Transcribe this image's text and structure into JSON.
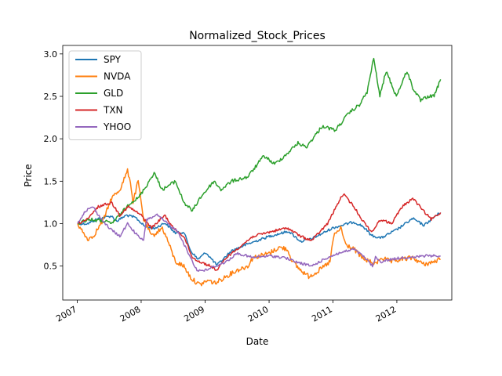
{
  "chart_data": {
    "type": "line",
    "title": "Normalized_Stock_Prices",
    "xlabel": "Date",
    "ylabel": "Price",
    "x_ticks": [
      "2007",
      "2008",
      "2009",
      "2010",
      "2011",
      "2012"
    ],
    "y_ticks": [
      "0.5",
      "1.0",
      "1.5",
      "2.0",
      "2.5",
      "3.0"
    ],
    "xlim": [
      "2006-10-10",
      "2012-11-10"
    ],
    "ylim": [
      0.1,
      3.1
    ],
    "grid": false,
    "legend_position": "top-left",
    "series": [
      {
        "name": "SPY",
        "color": "#1f77b4",
        "points": [
          [
            "2007-01-03",
            1.0
          ],
          [
            "2007-03-01",
            1.0
          ],
          [
            "2007-05-01",
            1.06
          ],
          [
            "2007-07-15",
            1.09
          ],
          [
            "2007-08-15",
            1.03
          ],
          [
            "2007-10-09",
            1.1
          ],
          [
            "2007-12-01",
            1.07
          ],
          [
            "2008-01-20",
            0.97
          ],
          [
            "2008-03-15",
            0.94
          ],
          [
            "2008-05-15",
            1.01
          ],
          [
            "2008-07-15",
            0.89
          ],
          [
            "2008-09-01",
            0.9
          ],
          [
            "2008-10-10",
            0.68
          ],
          [
            "2008-11-20",
            0.58
          ],
          [
            "2009-01-05",
            0.66
          ],
          [
            "2009-03-09",
            0.51
          ],
          [
            "2009-06-01",
            0.68
          ],
          [
            "2009-09-01",
            0.76
          ],
          [
            "2010-01-01",
            0.85
          ],
          [
            "2010-04-23",
            0.91
          ],
          [
            "2010-07-01",
            0.79
          ],
          [
            "2010-09-01",
            0.82
          ],
          [
            "2011-01-01",
            0.95
          ],
          [
            "2011-04-29",
            1.02
          ],
          [
            "2011-06-20",
            0.97
          ],
          [
            "2011-08-10",
            0.86
          ],
          [
            "2011-10-03",
            0.83
          ],
          [
            "2012-01-01",
            0.93
          ],
          [
            "2012-04-01",
            1.06
          ],
          [
            "2012-06-04",
            0.98
          ],
          [
            "2012-08-15",
            1.1
          ],
          [
            "2012-09-07",
            1.13
          ]
        ]
      },
      {
        "name": "NVDA",
        "color": "#ff7f0e",
        "points": [
          [
            "2007-01-03",
            1.0
          ],
          [
            "2007-02-01",
            0.9
          ],
          [
            "2007-03-01",
            0.82
          ],
          [
            "2007-04-01",
            0.85
          ],
          [
            "2007-06-01",
            1.05
          ],
          [
            "2007-07-15",
            1.3
          ],
          [
            "2007-09-01",
            1.4
          ],
          [
            "2007-10-15",
            1.62
          ],
          [
            "2007-11-01",
            1.5
          ],
          [
            "2007-11-15",
            1.25
          ],
          [
            "2007-12-15",
            1.5
          ],
          [
            "2008-01-15",
            1.05
          ],
          [
            "2008-03-01",
            0.85
          ],
          [
            "2008-05-01",
            0.95
          ],
          [
            "2008-06-01",
            0.8
          ],
          [
            "2008-07-15",
            0.55
          ],
          [
            "2008-09-01",
            0.5
          ],
          [
            "2008-10-15",
            0.35
          ],
          [
            "2008-12-01",
            0.28
          ],
          [
            "2009-01-15",
            0.33
          ],
          [
            "2009-03-01",
            0.3
          ],
          [
            "2009-05-01",
            0.38
          ],
          [
            "2009-07-01",
            0.45
          ],
          [
            "2009-09-01",
            0.5
          ],
          [
            "2009-10-01",
            0.6
          ],
          [
            "2010-01-01",
            0.65
          ],
          [
            "2010-03-01",
            0.72
          ],
          [
            "2010-04-15",
            0.7
          ],
          [
            "2010-05-15",
            0.55
          ],
          [
            "2010-07-01",
            0.45
          ],
          [
            "2010-08-15",
            0.38
          ],
          [
            "2010-10-01",
            0.43
          ],
          [
            "2010-11-15",
            0.5
          ],
          [
            "2010-12-15",
            0.55
          ],
          [
            "2011-01-05",
            0.85
          ],
          [
            "2011-02-15",
            0.95
          ],
          [
            "2011-03-15",
            0.75
          ],
          [
            "2011-05-01",
            0.7
          ],
          [
            "2011-06-15",
            0.6
          ],
          [
            "2011-08-01",
            0.55
          ],
          [
            "2011-09-01",
            0.52
          ],
          [
            "2011-10-01",
            0.6
          ],
          [
            "2011-12-01",
            0.55
          ],
          [
            "2012-02-01",
            0.58
          ],
          [
            "2012-04-01",
            0.6
          ],
          [
            "2012-06-01",
            0.52
          ],
          [
            "2012-08-01",
            0.55
          ],
          [
            "2012-09-07",
            0.58
          ]
        ]
      },
      {
        "name": "GLD",
        "color": "#2ca02c",
        "points": [
          [
            "2007-01-03",
            1.0
          ],
          [
            "2007-03-01",
            1.05
          ],
          [
            "2007-06-01",
            1.03
          ],
          [
            "2007-07-15",
            1.0
          ],
          [
            "2007-09-01",
            1.1
          ],
          [
            "2007-11-01",
            1.25
          ],
          [
            "2007-12-15",
            1.3
          ],
          [
            "2008-02-01",
            1.45
          ],
          [
            "2008-03-15",
            1.6
          ],
          [
            "2008-05-01",
            1.4
          ],
          [
            "2008-07-15",
            1.5
          ],
          [
            "2008-09-01",
            1.25
          ],
          [
            "2008-10-20",
            1.15
          ],
          [
            "2008-12-01",
            1.3
          ],
          [
            "2009-02-20",
            1.5
          ],
          [
            "2009-04-01",
            1.4
          ],
          [
            "2009-06-01",
            1.5
          ],
          [
            "2009-09-01",
            1.55
          ],
          [
            "2009-12-03",
            1.8
          ],
          [
            "2010-02-01",
            1.7
          ],
          [
            "2010-04-01",
            1.8
          ],
          [
            "2010-06-15",
            1.95
          ],
          [
            "2010-08-01",
            1.9
          ],
          [
            "2010-11-01",
            2.15
          ],
          [
            "2011-01-15",
            2.1
          ],
          [
            "2011-04-01",
            2.3
          ],
          [
            "2011-06-01",
            2.4
          ],
          [
            "2011-07-15",
            2.55
          ],
          [
            "2011-08-22",
            2.95
          ],
          [
            "2011-09-26",
            2.5
          ],
          [
            "2011-11-01",
            2.8
          ],
          [
            "2011-12-29",
            2.5
          ],
          [
            "2012-02-28",
            2.8
          ],
          [
            "2012-04-01",
            2.6
          ],
          [
            "2012-05-16",
            2.45
          ],
          [
            "2012-07-01",
            2.5
          ],
          [
            "2012-08-01",
            2.5
          ],
          [
            "2012-09-07",
            2.7
          ]
        ]
      },
      {
        "name": "TXN",
        "color": "#d62728",
        "points": [
          [
            "2007-01-03",
            1.0
          ],
          [
            "2007-03-01",
            1.05
          ],
          [
            "2007-05-01",
            1.2
          ],
          [
            "2007-07-15",
            1.25
          ],
          [
            "2007-09-01",
            1.1
          ],
          [
            "2007-10-20",
            1.2
          ],
          [
            "2008-01-01",
            1.1
          ],
          [
            "2008-03-01",
            0.95
          ],
          [
            "2008-05-15",
            1.1
          ],
          [
            "2008-07-01",
            0.95
          ],
          [
            "2008-09-01",
            0.85
          ],
          [
            "2008-10-20",
            0.6
          ],
          [
            "2008-12-01",
            0.55
          ],
          [
            "2009-02-01",
            0.5
          ],
          [
            "2009-03-09",
            0.45
          ],
          [
            "2009-05-01",
            0.6
          ],
          [
            "2009-08-01",
            0.75
          ],
          [
            "2009-10-01",
            0.85
          ],
          [
            "2010-01-01",
            0.9
          ],
          [
            "2010-04-15",
            0.95
          ],
          [
            "2010-07-01",
            0.85
          ],
          [
            "2010-09-01",
            0.8
          ],
          [
            "2010-12-01",
            1.0
          ],
          [
            "2011-02-01",
            1.25
          ],
          [
            "2011-03-01",
            1.35
          ],
          [
            "2011-05-01",
            1.2
          ],
          [
            "2011-06-15",
            1.05
          ],
          [
            "2011-08-10",
            0.9
          ],
          [
            "2011-10-01",
            1.05
          ],
          [
            "2011-12-01",
            1.0
          ],
          [
            "2012-02-01",
            1.2
          ],
          [
            "2012-04-01",
            1.3
          ],
          [
            "2012-06-01",
            1.15
          ],
          [
            "2012-07-15",
            1.05
          ],
          [
            "2012-09-07",
            1.13
          ]
        ]
      },
      {
        "name": "YHOO",
        "color": "#9467bd",
        "points": [
          [
            "2007-01-03",
            1.0
          ],
          [
            "2007-02-15",
            1.15
          ],
          [
            "2007-04-01",
            1.2
          ],
          [
            "2007-05-01",
            1.1
          ],
          [
            "2007-07-01",
            0.95
          ],
          [
            "2007-09-01",
            0.85
          ],
          [
            "2007-10-15",
            1.0
          ],
          [
            "2007-12-15",
            0.85
          ],
          [
            "2008-01-15",
            0.8
          ],
          [
            "2008-02-01",
            1.05
          ],
          [
            "2008-04-01",
            1.1
          ],
          [
            "2008-06-01",
            1.0
          ],
          [
            "2008-08-01",
            0.9
          ],
          [
            "2008-09-15",
            0.7
          ],
          [
            "2008-11-15",
            0.45
          ],
          [
            "2009-01-01",
            0.45
          ],
          [
            "2009-03-01",
            0.5
          ],
          [
            "2009-05-01",
            0.55
          ],
          [
            "2009-07-01",
            0.65
          ],
          [
            "2009-10-01",
            0.6
          ],
          [
            "2010-01-01",
            0.62
          ],
          [
            "2010-04-01",
            0.6
          ],
          [
            "2010-06-01",
            0.55
          ],
          [
            "2010-09-01",
            0.5
          ],
          [
            "2010-12-01",
            0.6
          ],
          [
            "2011-02-01",
            0.65
          ],
          [
            "2011-05-01",
            0.7
          ],
          [
            "2011-07-01",
            0.6
          ],
          [
            "2011-08-15",
            0.5
          ],
          [
            "2011-09-01",
            0.6
          ],
          [
            "2011-10-01",
            0.55
          ],
          [
            "2011-12-01",
            0.58
          ],
          [
            "2012-02-01",
            0.6
          ],
          [
            "2012-04-01",
            0.6
          ],
          [
            "2012-06-01",
            0.62
          ],
          [
            "2012-09-07",
            0.62
          ]
        ]
      }
    ]
  }
}
